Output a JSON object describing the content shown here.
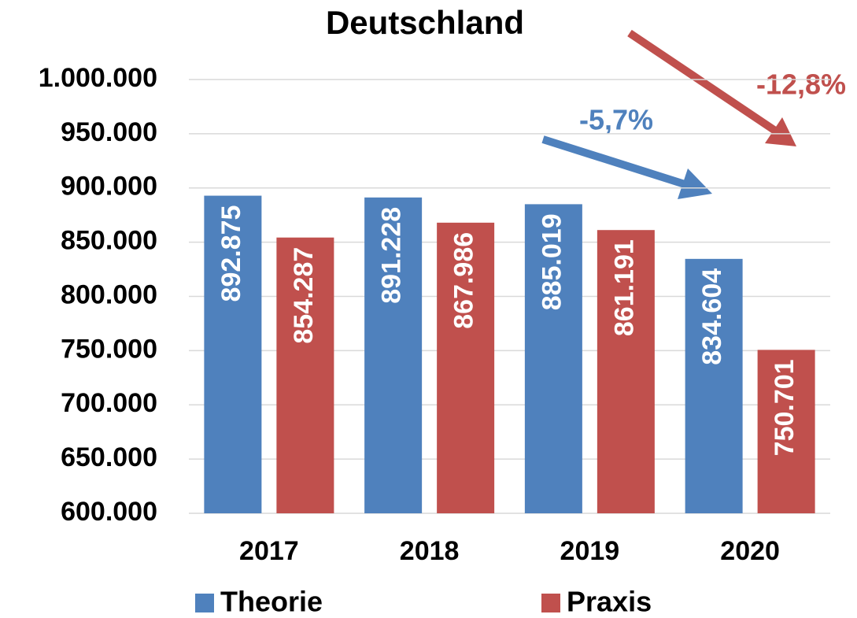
{
  "chart_data": {
    "type": "bar",
    "title": "Deutschland",
    "categories": [
      "2017",
      "2018",
      "2019",
      "2020"
    ],
    "series": [
      {
        "name": "Theorie",
        "color": "#4f81bd",
        "values": [
          892875,
          891228,
          885019,
          834604
        ],
        "value_labels": [
          "892.875",
          "891.228",
          "885.019",
          "834.604"
        ]
      },
      {
        "name": "Praxis",
        "color": "#c0504d",
        "values": [
          854287,
          867986,
          861191,
          750701
        ],
        "value_labels": [
          "854.287",
          "867.986",
          "861.191",
          "750.701"
        ]
      }
    ],
    "ylim": [
      600000,
      1000000
    ],
    "yticks": [
      {
        "value": 600000,
        "label": "600.000"
      },
      {
        "value": 650000,
        "label": "650.000"
      },
      {
        "value": 700000,
        "label": "700.000"
      },
      {
        "value": 750000,
        "label": "750.000"
      },
      {
        "value": 800000,
        "label": "800.000"
      },
      {
        "value": 850000,
        "label": "850.000"
      },
      {
        "value": 900000,
        "label": "900.000"
      },
      {
        "value": 950000,
        "label": "950.000"
      },
      {
        "value": 1000000,
        "label": "1.000.000"
      }
    ],
    "grid": true,
    "annotations": [
      "-5,7%",
      "-12,8%"
    ]
  }
}
